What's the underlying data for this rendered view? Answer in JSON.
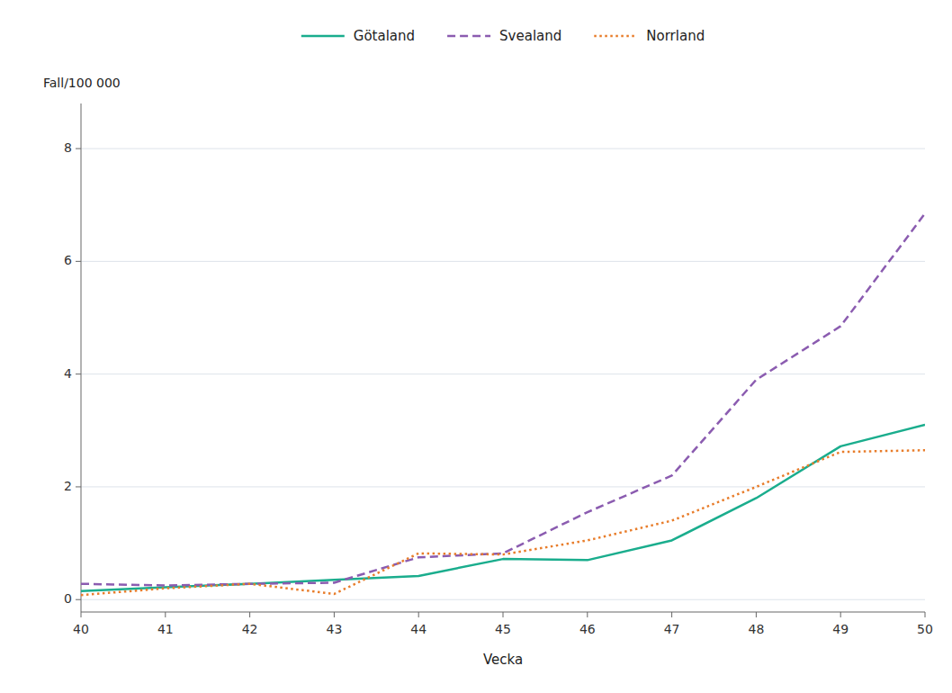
{
  "chart_data": {
    "type": "line",
    "xlabel": "Vecka",
    "ylabel": "Fall/100 000",
    "x": [
      40,
      41,
      42,
      43,
      44,
      45,
      46,
      47,
      48,
      49,
      50
    ],
    "series": [
      {
        "name": "Götaland",
        "color": "#1aad8d",
        "line_style": "solid",
        "values": [
          0.15,
          0.22,
          0.28,
          0.35,
          0.42,
          0.72,
          0.7,
          1.05,
          1.8,
          2.72,
          3.1
        ]
      },
      {
        "name": "Svealand",
        "color": "#8b5cb0",
        "line_style": "dashed",
        "values": [
          0.28,
          0.25,
          0.28,
          0.3,
          0.75,
          0.82,
          1.55,
          2.2,
          3.9,
          4.85,
          6.85
        ]
      },
      {
        "name": "Norrland",
        "color": "#e87d2b",
        "line_style": "dotted",
        "values": [
          0.08,
          0.2,
          0.28,
          0.1,
          0.82,
          0.8,
          1.05,
          1.4,
          2.0,
          2.62,
          2.65
        ]
      }
    ],
    "xlim": [
      40,
      50
    ],
    "xticks": [
      40,
      41,
      42,
      43,
      44,
      45,
      46,
      47,
      48,
      49,
      50
    ],
    "ylim": [
      -0.22,
      8.8
    ],
    "yticks": [
      0,
      2,
      4,
      6,
      8
    ],
    "grid": true,
    "legend": "top"
  }
}
